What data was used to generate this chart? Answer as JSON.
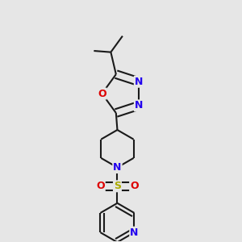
{
  "bg_color": "#e6e6e6",
  "bond_color": "#1a1a1a",
  "N_color": "#2200ee",
  "O_color": "#dd0000",
  "S_color": "#aaaa00",
  "lw": 1.5,
  "dbo": 0.018,
  "fig_w": 3.0,
  "fig_h": 3.0,
  "dpi": 100,
  "xlim": [
    0.15,
    0.85
  ],
  "ylim": [
    0.04,
    0.96
  ]
}
